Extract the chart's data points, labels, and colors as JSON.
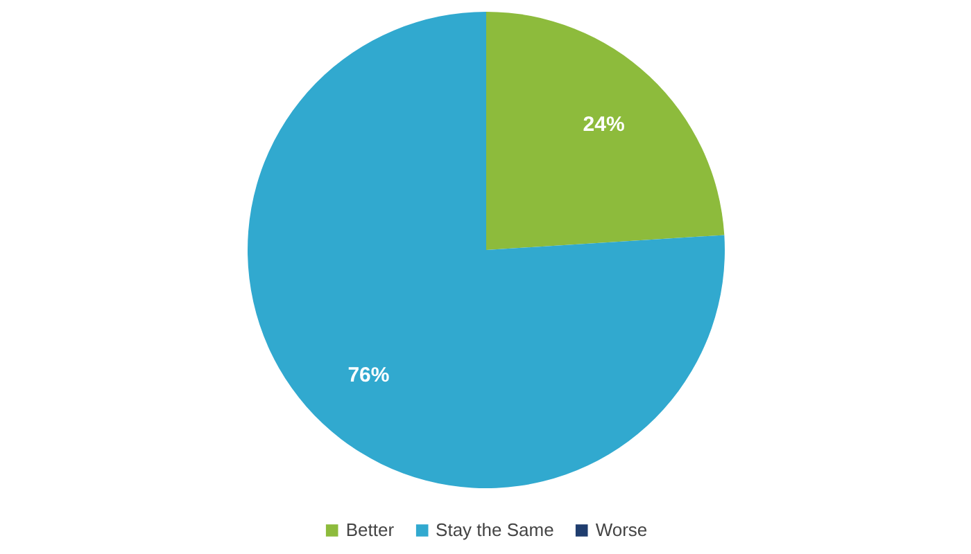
{
  "chart_data": {
    "type": "pie",
    "categories": [
      "Better",
      "Stay the Same",
      "Worse"
    ],
    "values": [
      24,
      76,
      0
    ],
    "colors": [
      "#8dbb3c",
      "#31a9cf",
      "#1f3d6e"
    ],
    "value_labels": [
      "24%",
      "76%",
      null
    ],
    "legend": "bottom"
  }
}
